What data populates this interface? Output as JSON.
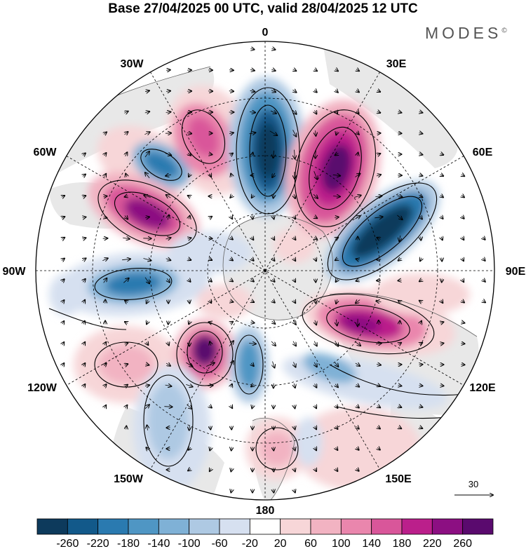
{
  "title": "Base 27/04/2025 00 UTC, valid 28/04/2025 12 UTC",
  "brand": "MODES",
  "brand_mark": "©",
  "longitude_labels": [
    "0",
    "30E",
    "60E",
    "90E",
    "120E",
    "150E",
    "180",
    "150W",
    "120W",
    "90W",
    "60W",
    "30W"
  ],
  "reference_vector": {
    "label": "30",
    "value": 30
  },
  "colorbar": {
    "ticks": [
      "-260",
      "-220",
      "-180",
      "-140",
      "-100",
      "-60",
      "-20",
      "20",
      "60",
      "100",
      "140",
      "180",
      "220",
      "260"
    ],
    "colors": [
      "#0d3a5c",
      "#12598a",
      "#2a7ab0",
      "#4f96c4",
      "#7fb1d6",
      "#aec9e3",
      "#d6e0f0",
      "#ffffff",
      "#f7d6d8",
      "#f2b3c2",
      "#ea86ad",
      "#d9569a",
      "#bb1f8b",
      "#8c0f82",
      "#5a0a6e"
    ]
  },
  "colors": {
    "land": "#e8e8e8",
    "grid": "#000000"
  }
}
